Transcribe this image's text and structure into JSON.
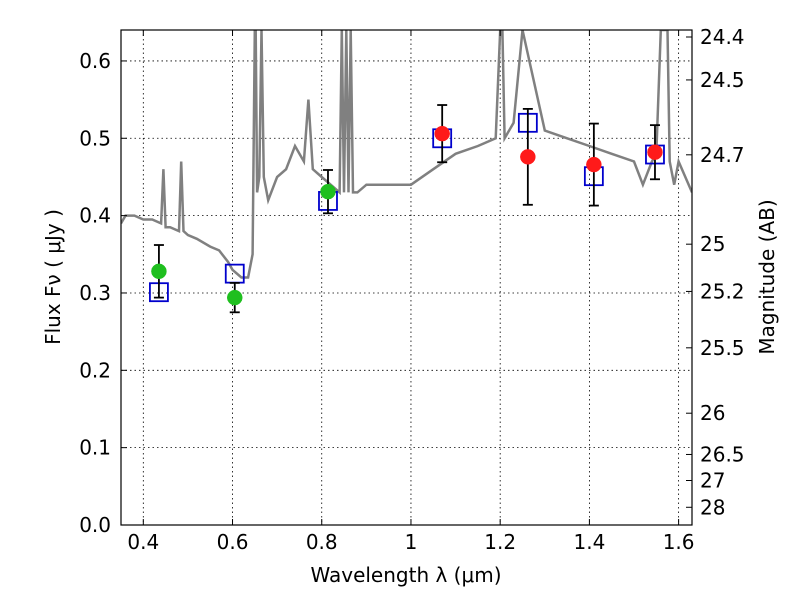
{
  "chart_data": {
    "type": "scatter",
    "title": "",
    "xlabel": "Wavelength  λ (μm)",
    "ylabel": "Flux  Fν  ( μJy )",
    "y2label": "Magnitude (AB)",
    "xlim": [
      0.35,
      1.63
    ],
    "ylim": [
      0.0,
      0.64
    ],
    "x_ticks": [
      "0.4",
      "0.6",
      "0.8",
      "1",
      "1.2",
      "1.4",
      "1.6"
    ],
    "y_ticks": [
      "0.0",
      "0.1",
      "0.2",
      "0.3",
      "0.4",
      "0.5",
      "0.6"
    ],
    "y2_ticks": [
      "24.4",
      "24.5",
      "24.7",
      "25",
      "25.2",
      "25.5",
      "26",
      "26.5",
      "27",
      "28"
    ],
    "grid": true,
    "colors": {
      "spectrum": "#808080",
      "green_points": "#1fbf1f",
      "red_points": "#ff1a1a",
      "model_boxes": "#0000cc",
      "errorbars": "#000000"
    },
    "series": [
      {
        "type": "line",
        "x": [
          0.35,
          0.36,
          0.37,
          0.38,
          0.4,
          0.42,
          0.44,
          0.445,
          0.45,
          0.46,
          0.48,
          0.485,
          0.49,
          0.5,
          0.52,
          0.55,
          0.57,
          0.59,
          0.6,
          0.62,
          0.635,
          0.645,
          0.65,
          0.652,
          0.655,
          0.66,
          0.665,
          0.67,
          0.68,
          0.7,
          0.72,
          0.74,
          0.76,
          0.77,
          0.78,
          0.8,
          0.82,
          0.84,
          0.845,
          0.85,
          0.855,
          0.86,
          0.865,
          0.87,
          0.88,
          0.9,
          0.95,
          1.0,
          1.05,
          1.1,
          1.15,
          1.19,
          1.2,
          1.205,
          1.21,
          1.23,
          1.25,
          1.3,
          1.35,
          1.4,
          1.45,
          1.5,
          1.52,
          1.54,
          1.55,
          1.56,
          1.575,
          1.58,
          1.59,
          1.6,
          1.63
        ],
        "values": [
          0.39,
          0.4,
          0.4,
          0.4,
          0.395,
          0.395,
          0.39,
          0.46,
          0.385,
          0.385,
          0.38,
          0.47,
          0.38,
          0.375,
          0.37,
          0.36,
          0.355,
          0.34,
          0.33,
          0.32,
          0.32,
          0.35,
          0.64,
          0.64,
          0.43,
          0.45,
          0.64,
          0.45,
          0.42,
          0.45,
          0.46,
          0.49,
          0.47,
          0.55,
          0.46,
          0.45,
          0.44,
          0.43,
          0.64,
          0.43,
          0.64,
          0.43,
          0.64,
          0.43,
          0.43,
          0.44,
          0.44,
          0.44,
          0.46,
          0.48,
          0.49,
          0.5,
          0.64,
          0.64,
          0.5,
          0.52,
          0.64,
          0.51,
          0.5,
          0.49,
          0.48,
          0.47,
          0.44,
          0.47,
          0.48,
          0.64,
          0.64,
          0.47,
          0.44,
          0.47,
          0.43
        ]
      },
      {
        "type": "scatter",
        "x": [
          0.435,
          0.605,
          0.814
        ],
        "values": [
          0.328,
          0.294,
          0.431
        ],
        "y_err": [
          0.034,
          0.019,
          0.028
        ]
      },
      {
        "type": "scatter",
        "x": [
          1.07,
          1.262,
          1.41,
          1.547
        ],
        "values": [
          0.506,
          0.476,
          0.466,
          0.482
        ],
        "y_err": [
          0.037,
          0.062,
          0.053,
          0.035
        ]
      },
      {
        "type": "scatter",
        "x": [
          0.435,
          0.605,
          0.814,
          1.07,
          1.262,
          1.41,
          1.547
        ],
        "values": [
          0.301,
          0.325,
          0.419,
          0.5,
          0.52,
          0.451,
          0.479
        ]
      }
    ]
  }
}
